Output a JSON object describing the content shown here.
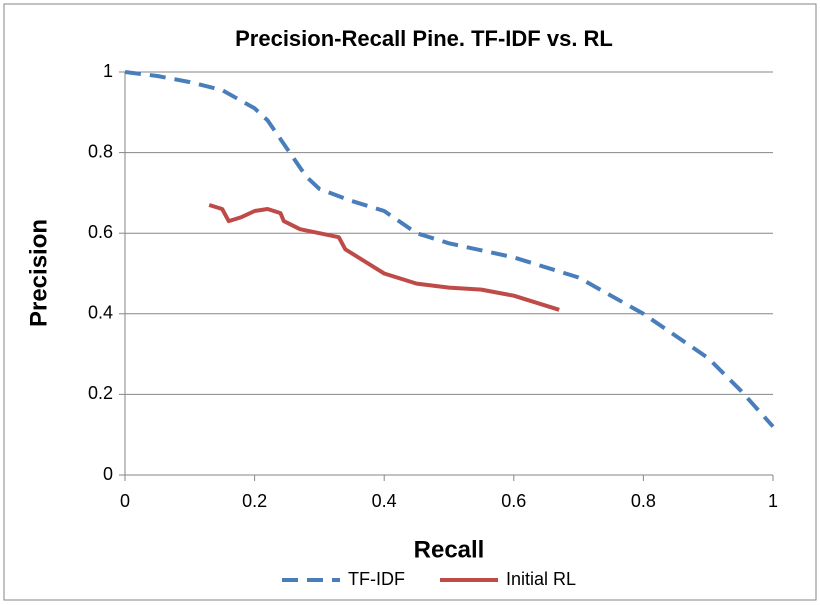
{
  "chart_data": {
    "type": "line",
    "title": "Precision-Recall Pine. TF-IDF vs. RL",
    "x_label": "Recall",
    "y_label": "Precision",
    "xlim": [
      0,
      1
    ],
    "xticks": [
      0,
      0.2,
      0.4,
      0.6,
      0.8,
      1
    ],
    "ylim": [
      0,
      1
    ],
    "yticks": [
      0,
      0.2,
      0.4,
      0.6,
      0.8,
      1
    ],
    "grid": true,
    "legend": "bottom",
    "series": [
      {
        "name": "TF-IDF",
        "color": "#4a7ebb",
        "dashed": true,
        "x": [
          0,
          0.05,
          0.1,
          0.15,
          0.2,
          0.22,
          0.25,
          0.28,
          0.3,
          0.35,
          0.4,
          0.45,
          0.5,
          0.6,
          0.7,
          0.8,
          0.9,
          0.95,
          1
        ],
        "values": [
          1,
          0.99,
          0.975,
          0.955,
          0.91,
          0.88,
          0.81,
          0.74,
          0.71,
          0.68,
          0.655,
          0.6,
          0.575,
          0.54,
          0.49,
          0.4,
          0.29,
          0.21,
          0.12
        ]
      },
      {
        "name": "Initial RL",
        "color": "#be4b48",
        "dashed": false,
        "x": [
          0.13,
          0.15,
          0.16,
          0.18,
          0.2,
          0.22,
          0.24,
          0.245,
          0.27,
          0.3,
          0.33,
          0.34,
          0.37,
          0.4,
          0.45,
          0.5,
          0.55,
          0.6,
          0.67
        ],
        "values": [
          0.67,
          0.66,
          0.63,
          0.64,
          0.655,
          0.66,
          0.65,
          0.63,
          0.61,
          0.6,
          0.59,
          0.56,
          0.53,
          0.5,
          0.475,
          0.465,
          0.46,
          0.445,
          0.41
        ]
      }
    ]
  }
}
